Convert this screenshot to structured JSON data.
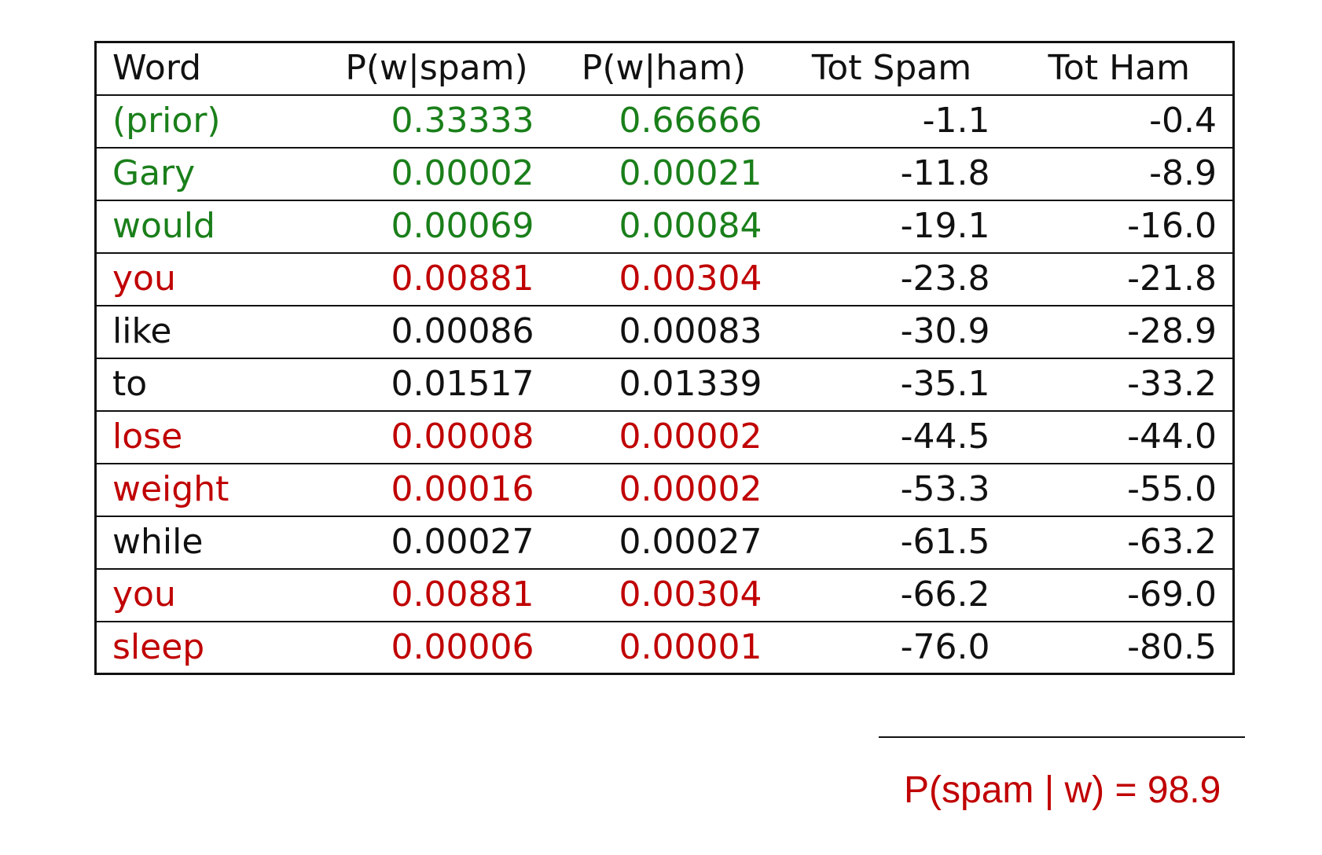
{
  "colors": {
    "green": "#1a7f1a",
    "red": "#c00000",
    "black": "#111111"
  },
  "table": {
    "headers": [
      "Word",
      "P(w|spam)",
      "P(w|ham)",
      "Tot Spam",
      "Tot Ham"
    ],
    "rows": [
      {
        "word": "(prior)",
        "p_spam": "0.33333",
        "p_ham": "0.66666",
        "tot_spam": "-1.1",
        "tot_ham": "-0.4",
        "color": "green"
      },
      {
        "word": "Gary",
        "p_spam": "0.00002",
        "p_ham": "0.00021",
        "tot_spam": "-11.8",
        "tot_ham": "-8.9",
        "color": "green"
      },
      {
        "word": "would",
        "p_spam": "0.00069",
        "p_ham": "0.00084",
        "tot_spam": "-19.1",
        "tot_ham": "-16.0",
        "color": "green"
      },
      {
        "word": "you",
        "p_spam": "0.00881",
        "p_ham": "0.00304",
        "tot_spam": "-23.8",
        "tot_ham": "-21.8",
        "color": "red"
      },
      {
        "word": "like",
        "p_spam": "0.00086",
        "p_ham": "0.00083",
        "tot_spam": "-30.9",
        "tot_ham": "-28.9",
        "color": "black"
      },
      {
        "word": "to",
        "p_spam": "0.01517",
        "p_ham": "0.01339",
        "tot_spam": "-35.1",
        "tot_ham": "-33.2",
        "color": "black"
      },
      {
        "word": "lose",
        "p_spam": "0.00008",
        "p_ham": "0.00002",
        "tot_spam": "-44.5",
        "tot_ham": "-44.0",
        "color": "red"
      },
      {
        "word": "weight",
        "p_spam": "0.00016",
        "p_ham": "0.00002",
        "tot_spam": "-53.3",
        "tot_ham": "-55.0",
        "color": "red"
      },
      {
        "word": "while",
        "p_spam": "0.00027",
        "p_ham": "0.00027",
        "tot_spam": "-61.5",
        "tot_ham": "-63.2",
        "color": "black"
      },
      {
        "word": "you",
        "p_spam": "0.00881",
        "p_ham": "0.00304",
        "tot_spam": "-66.2",
        "tot_ham": "-69.0",
        "color": "red"
      },
      {
        "word": "sleep",
        "p_spam": "0.00006",
        "p_ham": "0.00001",
        "tot_spam": "-76.0",
        "tot_ham": "-80.5",
        "color": "red"
      }
    ]
  },
  "summary": {
    "posterior": "P(spam | w) = 98.9",
    "color": "red"
  }
}
